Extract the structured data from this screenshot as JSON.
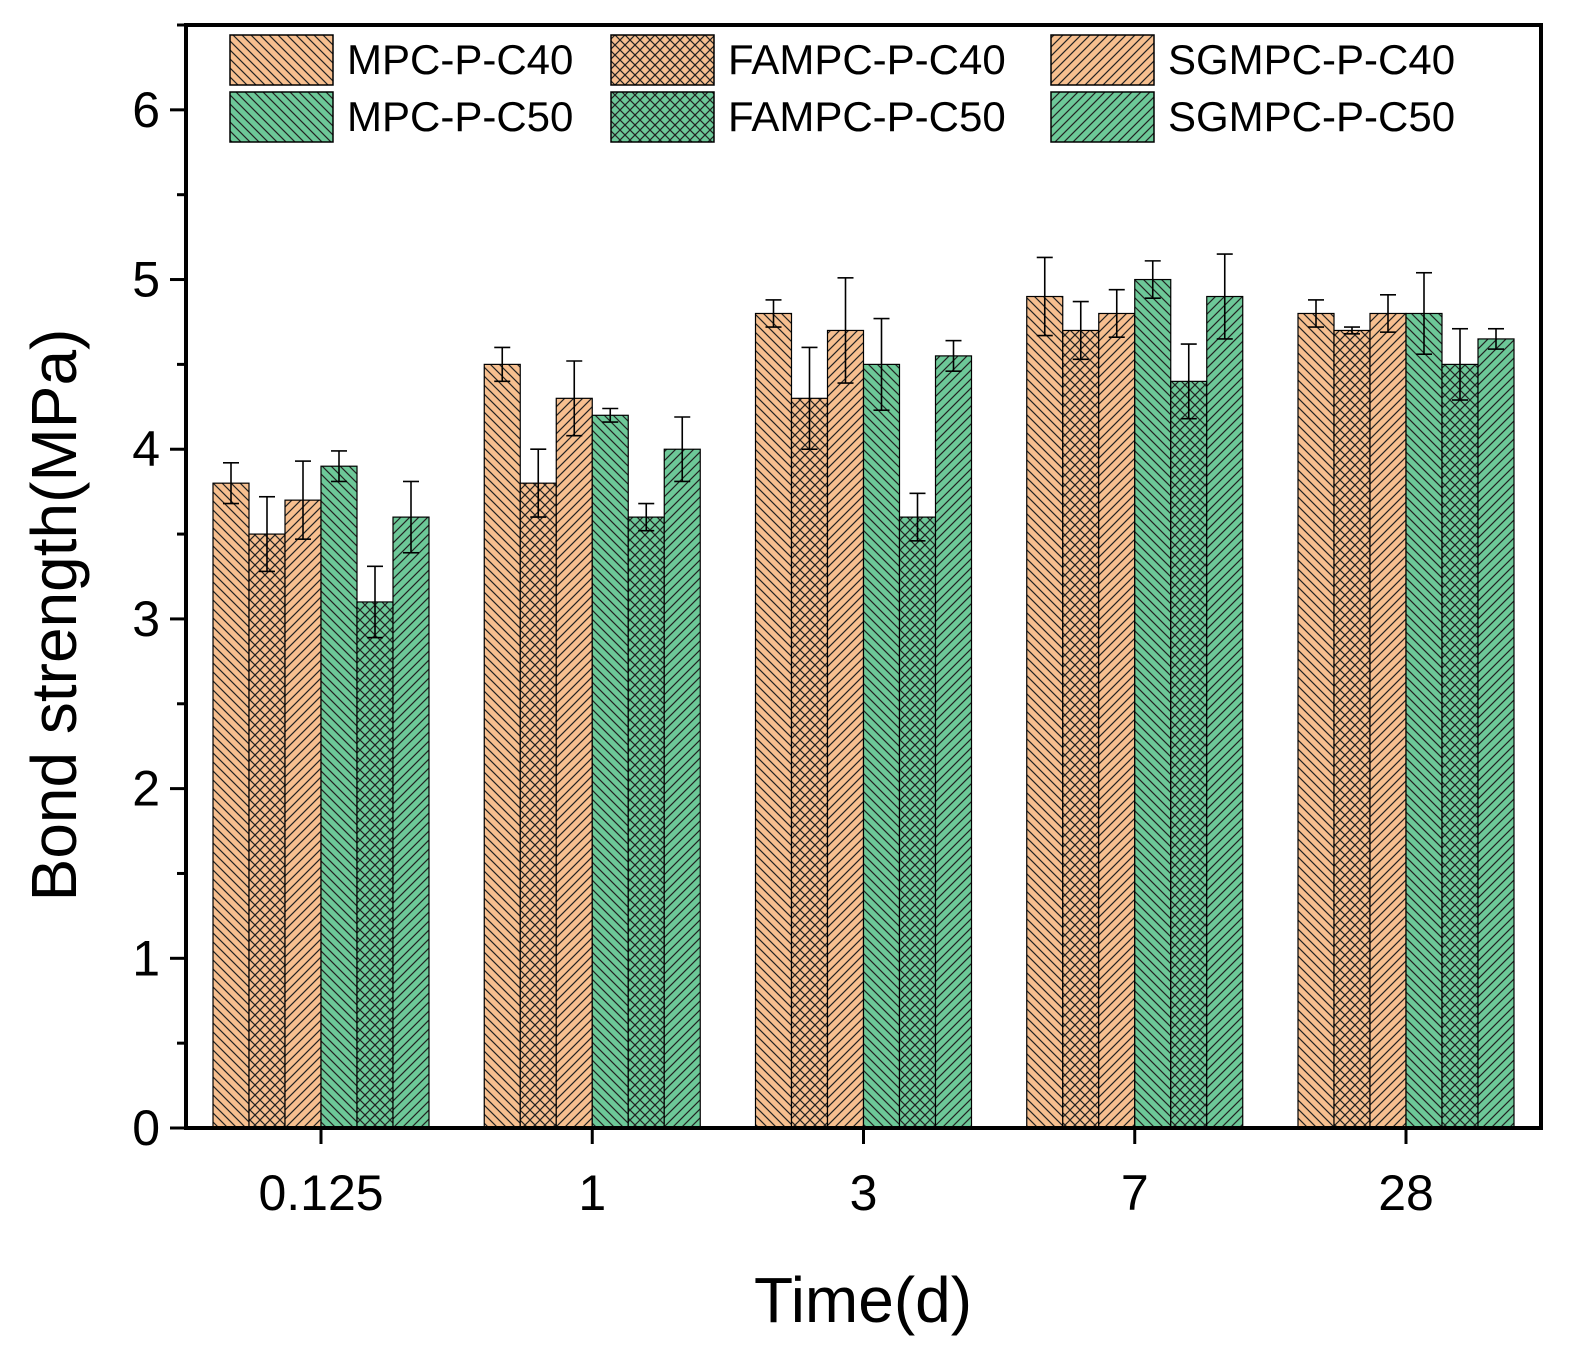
{
  "chart_data": {
    "type": "bar",
    "title": "",
    "xlabel": "Time(d)",
    "ylabel": "Bond strength(MPa)",
    "ylim": [
      0,
      6.5
    ],
    "yticks": [
      0,
      1,
      2,
      3,
      4,
      5,
      6
    ],
    "grid": false,
    "legend_position": "top",
    "categories": [
      "0.125",
      "1",
      "3",
      "7",
      "28"
    ],
    "series": [
      {
        "name": "MPC-P-C40",
        "color": "#f6bf8f",
        "pattern": "diag-back",
        "values": [
          3.8,
          4.5,
          4.8,
          4.9,
          4.8
        ],
        "errors": [
          0.12,
          0.1,
          0.08,
          0.23,
          0.08
        ]
      },
      {
        "name": "FAMPC-P-C40",
        "color": "#f6bf8f",
        "pattern": "cross",
        "values": [
          3.5,
          3.8,
          4.3,
          4.7,
          4.7
        ],
        "errors": [
          0.22,
          0.2,
          0.3,
          0.17,
          0.02
        ]
      },
      {
        "name": "SGMPC-P-C40",
        "color": "#f6bf8f",
        "pattern": "diag-fwd",
        "values": [
          3.7,
          4.3,
          4.7,
          4.8,
          4.8
        ],
        "errors": [
          0.23,
          0.22,
          0.31,
          0.14,
          0.11
        ]
      },
      {
        "name": "MPC-P-C50",
        "color": "#6dc898",
        "pattern": "diag-back",
        "values": [
          3.9,
          4.2,
          4.5,
          5.0,
          4.8
        ],
        "errors": [
          0.09,
          0.04,
          0.27,
          0.11,
          0.24
        ]
      },
      {
        "name": "FAMPC-P-C50",
        "color": "#6dc898",
        "pattern": "cross",
        "values": [
          3.1,
          3.6,
          3.6,
          4.4,
          4.5
        ],
        "errors": [
          0.21,
          0.08,
          0.14,
          0.22,
          0.21
        ]
      },
      {
        "name": "SGMPC-P-C50",
        "color": "#6dc898",
        "pattern": "diag-fwd",
        "values": [
          3.6,
          4.0,
          4.55,
          4.9,
          4.65
        ],
        "errors": [
          0.21,
          0.19,
          0.09,
          0.25,
          0.06
        ]
      }
    ]
  }
}
